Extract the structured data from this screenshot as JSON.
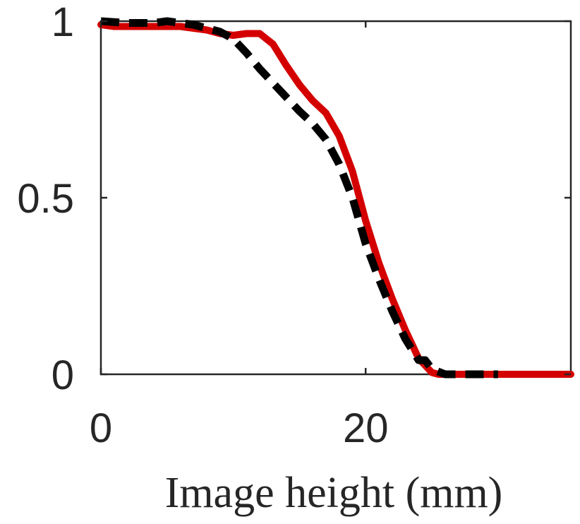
{
  "chart_data": {
    "type": "line",
    "title": "",
    "xlabel": "Image height (mm)",
    "ylabel": "",
    "xlim": [
      0,
      35.5
    ],
    "ylim": [
      0,
      1
    ],
    "grid": false,
    "x_ticks": [
      0,
      20
    ],
    "x_tick_labels": [
      "0",
      "20"
    ],
    "y_ticks": [
      0,
      0.5,
      1
    ],
    "y_tick_labels": [
      "0",
      "0.5",
      "1"
    ],
    "series": [
      {
        "color": "#d40000",
        "style": "solid-dots",
        "x": [
          0,
          1,
          2,
          3,
          4,
          5,
          6,
          7,
          8,
          9,
          10,
          11,
          12,
          13,
          14,
          15,
          16,
          17,
          18,
          19,
          20,
          21,
          22,
          23,
          24,
          25,
          25.5,
          26,
          27,
          28,
          29,
          30,
          31,
          32,
          33,
          34,
          35.5
        ],
        "y": [
          0.99,
          0.985,
          0.985,
          0.985,
          0.985,
          0.985,
          0.985,
          0.98,
          0.975,
          0.965,
          0.96,
          0.965,
          0.965,
          0.935,
          0.875,
          0.82,
          0.775,
          0.74,
          0.675,
          0.575,
          0.435,
          0.315,
          0.215,
          0.125,
          0.045,
          0.005,
          0,
          0,
          0,
          0,
          0,
          0,
          0,
          0,
          0,
          0,
          0
        ]
      },
      {
        "color": "#000000",
        "style": "dashed",
        "x": [
          0,
          2,
          4,
          5,
          6,
          7,
          8,
          9,
          10,
          11,
          12,
          13,
          14,
          15,
          16,
          17,
          18,
          19,
          20,
          21,
          22,
          23,
          24,
          24.5,
          25,
          26,
          27,
          28,
          29,
          30
        ],
        "y": [
          1.0,
          0.995,
          0.995,
          1.0,
          0.995,
          0.99,
          0.98,
          0.97,
          0.95,
          0.91,
          0.865,
          0.825,
          0.785,
          0.745,
          0.71,
          0.665,
          0.595,
          0.5,
          0.37,
          0.27,
          0.18,
          0.1,
          0.04,
          0.04,
          0.015,
          0,
          0,
          0,
          0,
          0
        ]
      }
    ]
  }
}
